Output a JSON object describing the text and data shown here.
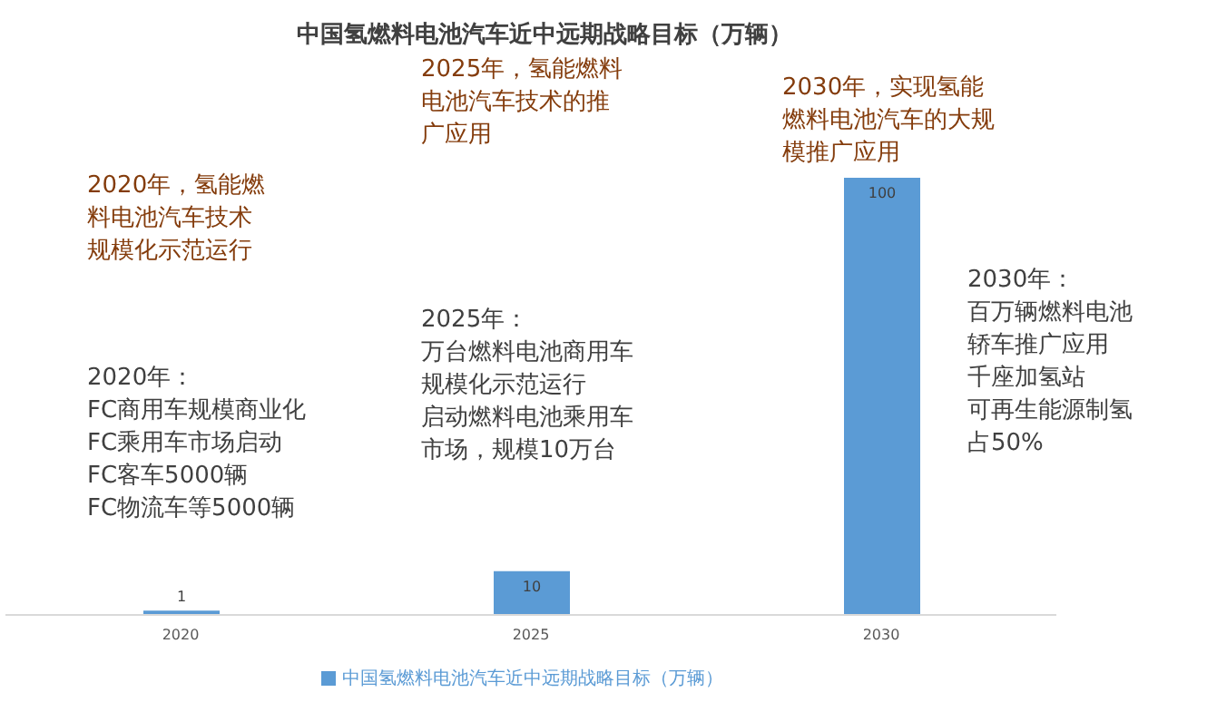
{
  "chart_data": {
    "type": "bar",
    "title": "中国氢燃料电池汽车近中远期战略目标（万辆）",
    "categories": [
      "2020",
      "2025",
      "2030"
    ],
    "series": [
      {
        "name": "中国氢燃料电池汽车近中远期战略目标（万辆）",
        "color": "#5b9bd5",
        "values": [
          1,
          10,
          100
        ]
      }
    ],
    "data_labels": true,
    "legend": "bottom",
    "annotations": [
      "2020年，氢能燃料电池汽车技术规模化示范运行",
      "2025年，氢能燃料电池汽车技术的推广应用",
      "2030年，实现氢能燃料电池汽车的大规模推广应用",
      "2020年：",
      "FC商用车规模商业化",
      "FC乘用车市场启动",
      "FC客车5000辆",
      "FC物流车等5000辆",
      "2025年：",
      "万台燃料电池商用车规模化示范运行",
      "启动燃料电池乘用车市场，规模10万台",
      "2030年：",
      "百万辆燃料电池轿车推广应用",
      "千座加氢站",
      "可再生能源制氢占50%"
    ]
  }
}
